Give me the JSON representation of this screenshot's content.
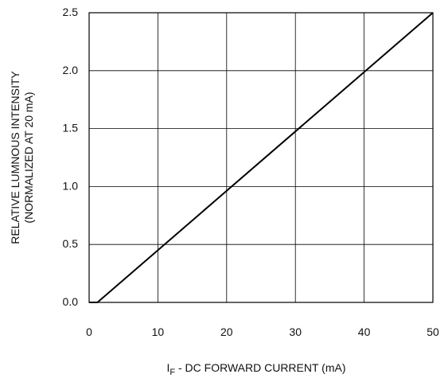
{
  "chart_data": {
    "type": "line",
    "xlabel_prefix": "I",
    "xlabel_subscript": "F",
    "xlabel_rest": " - DC FORWARD CURRENT (mA)",
    "ylabel_line1": "RELATIVE LUMNOUS INTENSITY",
    "ylabel_line2": "(NORMALIZED AT 20 mA)",
    "xlim": [
      0,
      50
    ],
    "ylim": [
      0,
      2.5
    ],
    "x_ticks": [
      0,
      10,
      20,
      30,
      40,
      50
    ],
    "x_tick_labels": [
      "0",
      "10",
      "20",
      "30",
      "40",
      "50"
    ],
    "y_ticks": [
      0,
      0.5,
      1.0,
      1.5,
      2.0,
      2.5
    ],
    "y_tick_labels": [
      "0.0",
      "0.5",
      "1.0",
      "1.5",
      "2.0",
      "2.5"
    ],
    "grid": true,
    "series": [
      {
        "x": [
          0,
          1.2,
          50
        ],
        "y": [
          0,
          0,
          2.5
        ]
      }
    ]
  }
}
